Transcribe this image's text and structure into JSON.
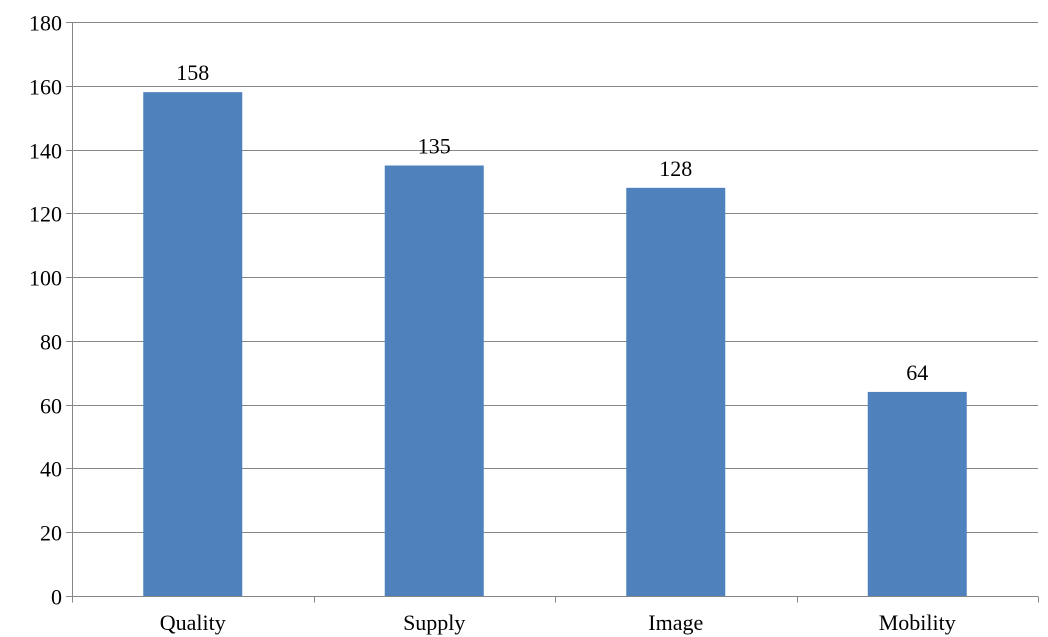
{
  "chart_data": {
    "type": "bar",
    "categories": [
      "Quality",
      "Supply",
      "Image",
      "Mobility"
    ],
    "series": [
      {
        "values": [
          158,
          135,
          128,
          64
        ]
      }
    ],
    "data_labels": [
      "158",
      "135",
      "128",
      "64"
    ],
    "ylim": [
      0,
      180
    ],
    "yticks": [
      0,
      20,
      40,
      60,
      80,
      100,
      120,
      140,
      160,
      180
    ],
    "ytick_labels": [
      "0",
      "20",
      "40",
      "60",
      "80",
      "100",
      "120",
      "140",
      "160",
      "180"
    ],
    "grid": true,
    "legend": "none",
    "colors": {
      "bar": "#4f81bd",
      "grid": "#868686",
      "axis": "#868686",
      "text": "#000000"
    }
  }
}
